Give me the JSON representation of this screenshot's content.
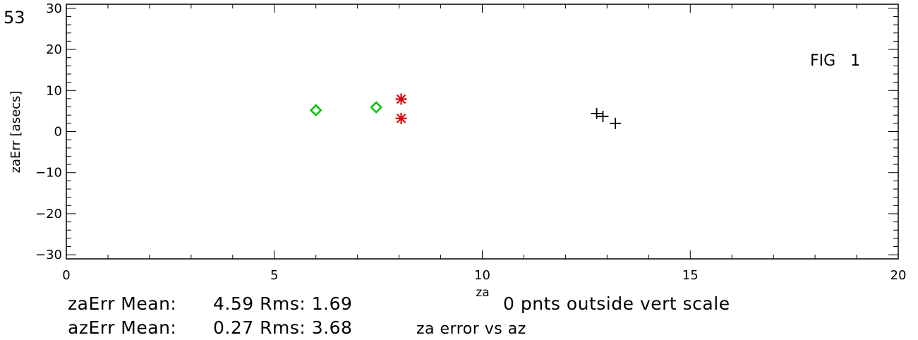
{
  "corner_label": "53",
  "fig_label": "FIG   1",
  "chart_data": {
    "type": "scatter",
    "xlabel": "za",
    "ylabel": "zaErr [asecs]",
    "xlim": [
      0,
      20
    ],
    "ylim": [
      -31,
      31
    ],
    "x_ticks": [
      0,
      5,
      10,
      15,
      20
    ],
    "y_ticks": [
      -30,
      -20,
      -10,
      0,
      10,
      20,
      30
    ],
    "grid": false,
    "series": [
      {
        "marker": "diamond",
        "color": "#00c000",
        "points": [
          [
            6.0,
            5.2
          ],
          [
            7.45,
            5.9
          ]
        ]
      },
      {
        "marker": "asterisk",
        "color": "#e00000",
        "points": [
          [
            8.05,
            7.9
          ],
          [
            8.05,
            3.2
          ]
        ]
      },
      {
        "marker": "plus",
        "color": "#000000",
        "points": [
          [
            12.75,
            4.4
          ],
          [
            12.9,
            3.7
          ],
          [
            13.2,
            2.0
          ]
        ]
      }
    ]
  },
  "stats": {
    "line1_label": "zaErr Mean:",
    "line1_values": "4.59 Rms: 1.69",
    "line2_label": "azErr Mean:",
    "line2_values": "0.27 Rms: 3.68",
    "outside_note": "0 pnts outside vert scale",
    "subtitle": "za error vs az"
  }
}
